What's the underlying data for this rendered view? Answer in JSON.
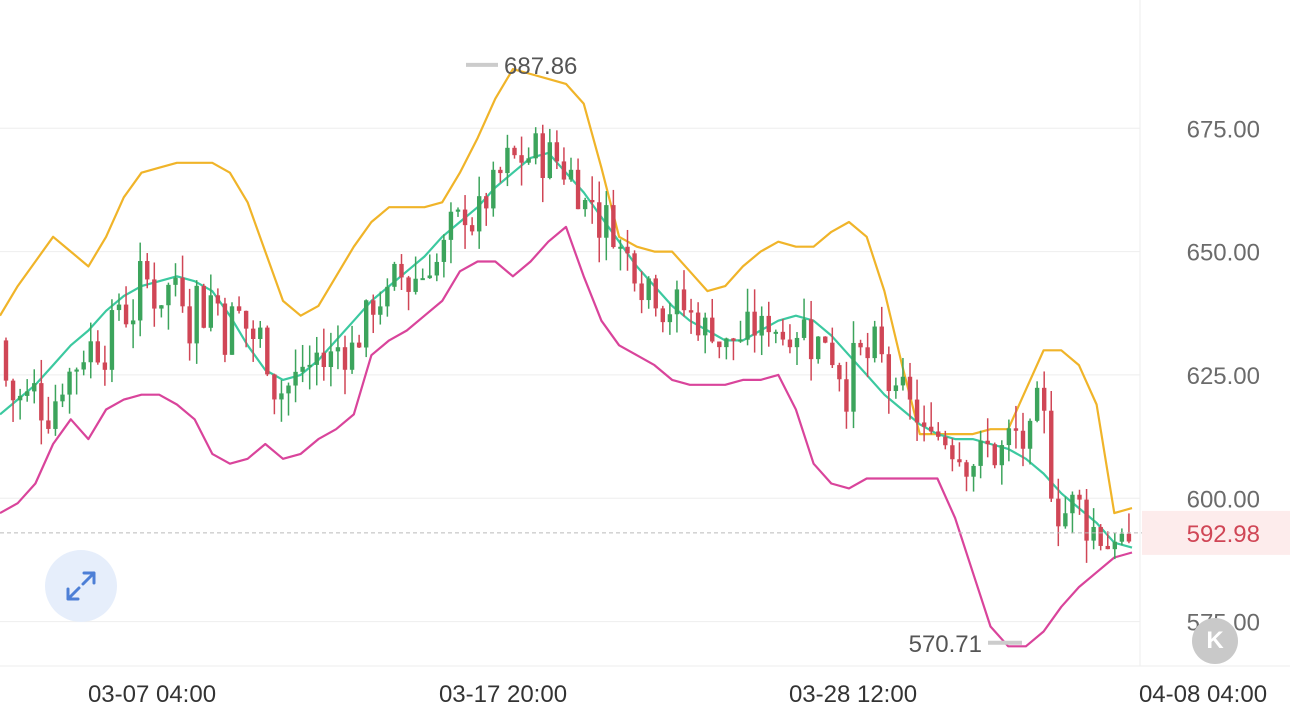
{
  "chart_data": {
    "type": "candlestick",
    "price_axis": {
      "ticks": [
        "675.00",
        "650.00",
        "625.00",
        "600.00",
        "575.00"
      ],
      "tick_values": [
        675,
        650,
        625,
        600,
        575
      ],
      "range": [
        566,
        701
      ]
    },
    "time_axis": {
      "ticks": [
        "03-07 04:00",
        "03-17 20:00",
        "03-28 12:00",
        "04-08 04:00"
      ]
    },
    "last_price": {
      "value": 592.98,
      "label": "592.98"
    },
    "high_marker": {
      "value": 687.86,
      "label": "687.86"
    },
    "low_marker": {
      "value": 570.71,
      "label": "570.71"
    },
    "indicators": [
      {
        "id": "upper-band",
        "color": "#f0b429"
      },
      {
        "id": "middle-band",
        "color": "#3cc9a0"
      },
      {
        "id": "lower-band",
        "color": "#d9449b"
      }
    ],
    "upper_band_values": [
      637,
      643,
      648,
      653,
      650,
      647,
      653,
      661,
      666,
      667,
      668,
      668,
      668,
      666,
      660,
      650,
      640,
      637,
      639,
      645,
      651,
      656,
      659,
      659,
      659,
      660,
      666,
      673,
      681,
      687,
      686,
      685,
      684,
      680,
      667,
      653,
      651,
      650,
      650,
      646,
      642,
      643,
      647,
      650,
      652,
      651,
      651,
      654,
      656,
      653,
      642,
      627,
      613,
      613,
      613,
      613,
      614,
      614,
      622,
      630,
      630,
      627,
      619,
      597,
      598
    ],
    "middle_band_values": [
      617,
      620,
      623,
      627,
      631,
      634,
      638,
      641,
      643,
      644,
      645,
      644,
      642,
      637,
      631,
      626,
      624,
      625,
      628,
      632,
      636,
      640,
      643,
      646,
      649,
      653,
      656,
      659,
      663,
      666,
      669,
      670,
      666,
      662,
      657,
      652,
      647,
      643,
      639,
      636,
      634,
      632,
      632,
      634,
      636,
      637,
      636,
      633,
      629,
      625,
      621,
      618,
      615,
      613,
      612,
      612,
      611,
      610,
      608,
      605,
      601,
      598,
      595,
      591,
      590
    ],
    "lower_band_values": [
      597,
      599,
      603,
      611,
      616,
      612,
      618,
      620,
      621,
      621,
      619,
      616,
      609,
      607,
      608,
      611,
      608,
      609,
      612,
      614,
      617,
      629,
      632,
      634,
      637,
      640,
      646,
      648,
      648,
      645,
      648,
      652,
      655,
      645,
      636,
      631,
      629,
      627,
      624,
      623,
      623,
      623,
      624,
      624,
      625,
      618,
      607,
      603,
      602,
      604,
      604,
      604,
      604,
      604,
      596,
      585,
      574,
      570,
      570,
      573,
      578,
      582,
      585,
      588,
      589
    ]
  },
  "controls": {
    "expand_icon": "expand-arrows-icon",
    "jump_icon": "jump-to-latest-icon",
    "jump_glyph": "K"
  },
  "colors": {
    "up": "#3ca45c",
    "down": "#d04656",
    "grid": "#eeeeee",
    "last_price_line": "#bbbbbb",
    "last_price_bg": "#fdecec",
    "last_price_text": "#d04656"
  }
}
